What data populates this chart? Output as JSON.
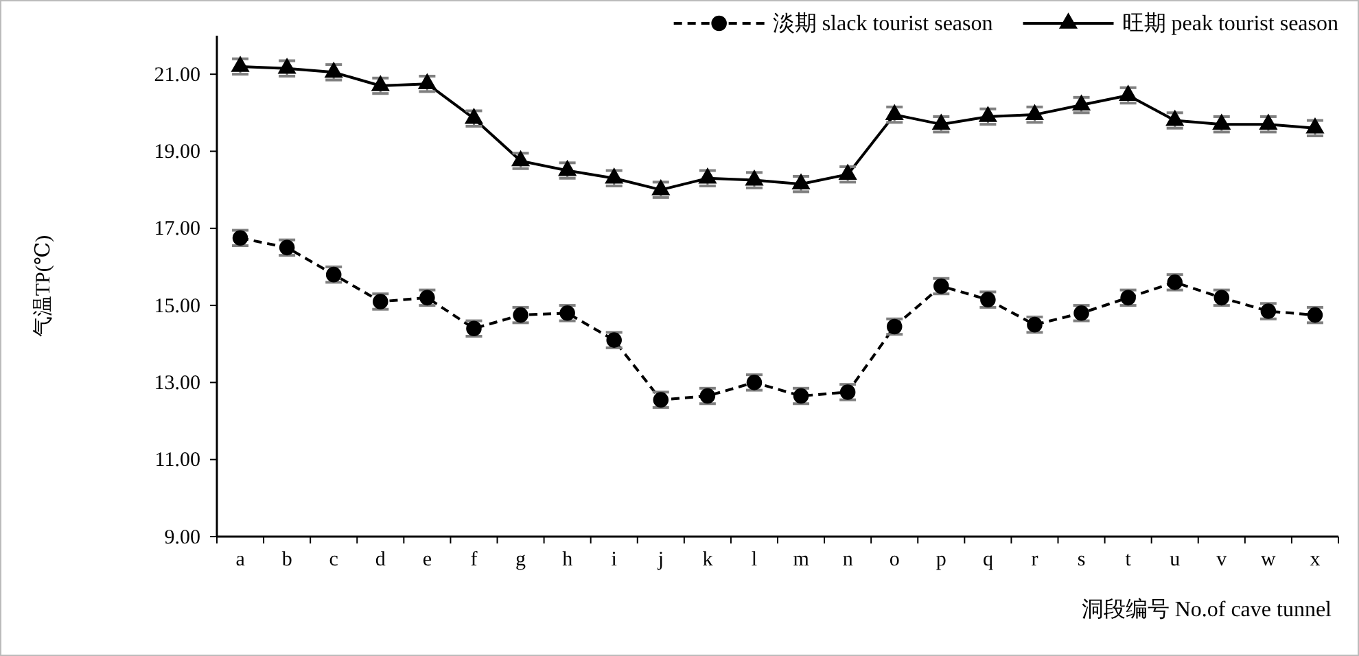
{
  "chart_data": {
    "type": "line",
    "xlabel": "洞段编号 No.of cave tunnel",
    "ylabel": "气温TP(℃)",
    "categories": [
      "a",
      "b",
      "c",
      "d",
      "e",
      "f",
      "g",
      "h",
      "i",
      "j",
      "k",
      "l",
      "m",
      "n",
      "o",
      "p",
      "q",
      "r",
      "s",
      "t",
      "u",
      "v",
      "w",
      "x"
    ],
    "series": [
      {
        "name": "淡期 slack tourist season",
        "color": "#000000",
        "marker": "circle",
        "line_style": "dashed",
        "values": [
          16.75,
          16.5,
          15.8,
          15.1,
          15.2,
          14.4,
          14.75,
          14.8,
          14.1,
          12.55,
          12.65,
          13.0,
          12.65,
          12.75,
          14.45,
          15.5,
          15.15,
          14.5,
          14.8,
          15.2,
          15.6,
          15.2,
          14.85,
          14.75
        ],
        "errors": [
          0.2,
          0.2,
          0.2,
          0.2,
          0.2,
          0.2,
          0.2,
          0.2,
          0.2,
          0.2,
          0.2,
          0.2,
          0.2,
          0.2,
          0.2,
          0.2,
          0.2,
          0.2,
          0.2,
          0.2,
          0.2,
          0.2,
          0.2,
          0.2
        ]
      },
      {
        "name": "旺期 peak tourist season",
        "color": "#000000",
        "marker": "triangle",
        "line_style": "solid",
        "values": [
          21.2,
          21.15,
          21.05,
          20.7,
          20.75,
          19.85,
          18.75,
          18.5,
          18.3,
          18.0,
          18.3,
          18.25,
          18.15,
          18.4,
          19.95,
          19.7,
          19.9,
          19.95,
          20.2,
          20.45,
          19.8,
          19.7,
          19.7,
          19.6
        ],
        "errors": [
          0.2,
          0.2,
          0.2,
          0.2,
          0.2,
          0.2,
          0.2,
          0.2,
          0.2,
          0.2,
          0.2,
          0.2,
          0.2,
          0.2,
          0.2,
          0.2,
          0.2,
          0.2,
          0.2,
          0.2,
          0.2,
          0.2,
          0.2,
          0.2
        ]
      }
    ],
    "ylim": [
      9,
      22
    ],
    "yticks": [
      {
        "value": 9,
        "label": "9.00"
      },
      {
        "value": 11,
        "label": "11.00"
      },
      {
        "value": 13,
        "label": "13.00"
      },
      {
        "value": 15,
        "label": "15.00"
      },
      {
        "value": 17,
        "label": "17.00"
      },
      {
        "value": 19,
        "label": "19.00"
      },
      {
        "value": 21,
        "label": "21.00"
      }
    ],
    "grid": false,
    "legend": "top right"
  }
}
